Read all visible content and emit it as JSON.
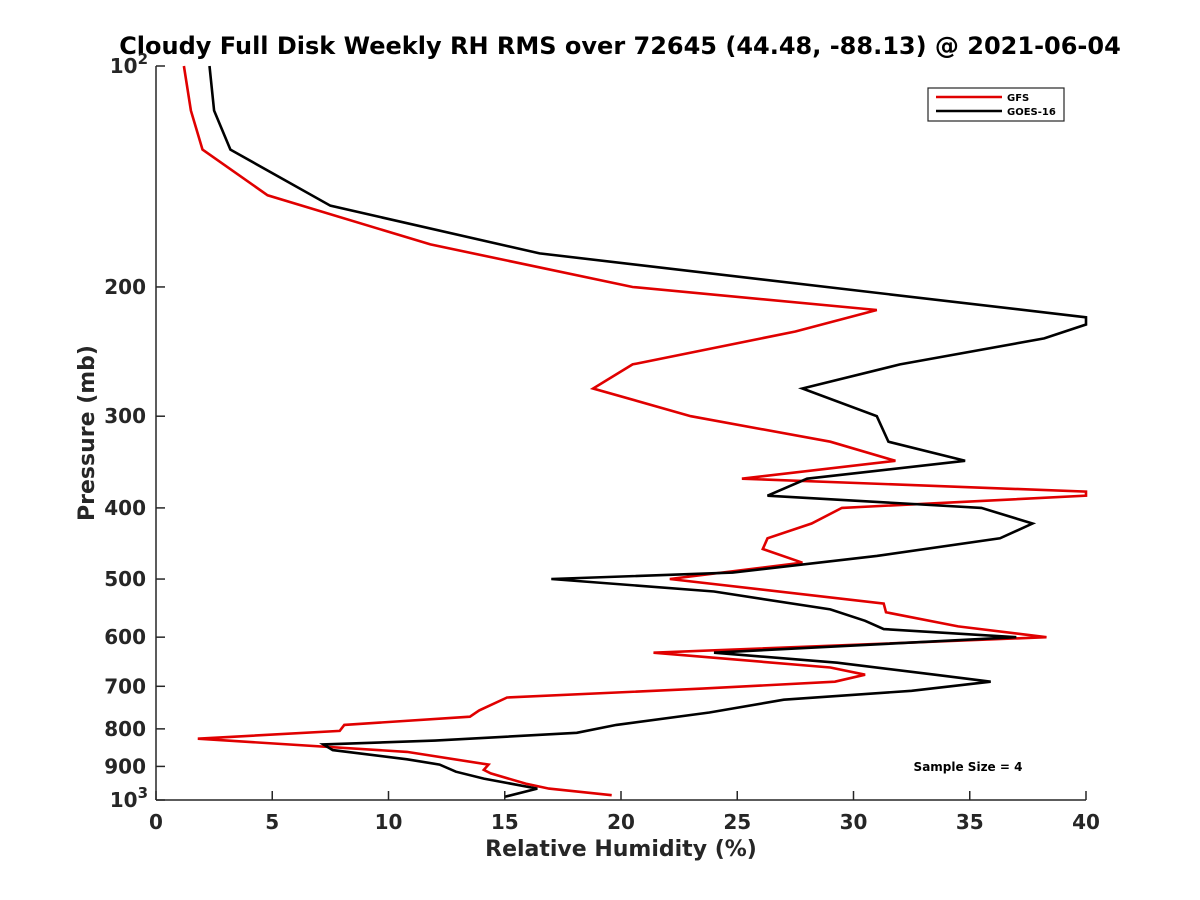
{
  "chart_data": {
    "type": "line",
    "title": "Cloudy Full Disk Weekly RH RMS over 72645 (44.48, -88.13) @ 2021-06-04",
    "xlabel": "Relative Humidity (%)",
    "ylabel": "Pressure (mb)",
    "xlim": [
      0,
      40
    ],
    "ylim": [
      100,
      1000
    ],
    "y_scale": "log",
    "y_reversed": true,
    "grid": false,
    "legend_position": "top-right",
    "annotation": "Sample Size = 4",
    "x_ticks": [
      "0",
      "5",
      "10",
      "15",
      "20",
      "25",
      "30",
      "35",
      "40"
    ],
    "y_ticks": [
      {
        "value": 100,
        "base": "10",
        "exp": "2"
      },
      {
        "value": 200,
        "label": "200"
      },
      {
        "value": 300,
        "label": "300"
      },
      {
        "value": 400,
        "label": "400"
      },
      {
        "value": 500,
        "label": "500"
      },
      {
        "value": 600,
        "label": "600"
      },
      {
        "value": 700,
        "label": "700"
      },
      {
        "value": 800,
        "label": "800"
      },
      {
        "value": 900,
        "label": "900"
      },
      {
        "value": 1000,
        "base": "10",
        "exp": "3"
      }
    ],
    "series": [
      {
        "name": "GFS",
        "color": "#e00000",
        "points": [
          [
            1.2,
            100
          ],
          [
            1.5,
            115
          ],
          [
            2.0,
            130
          ],
          [
            4.8,
            150
          ],
          [
            11.8,
            175
          ],
          [
            20.5,
            200
          ],
          [
            31.0,
            215
          ],
          [
            27.5,
            230
          ],
          [
            20.5,
            255
          ],
          [
            18.8,
            275
          ],
          [
            23.0,
            300
          ],
          [
            29.0,
            325
          ],
          [
            31.8,
            345
          ],
          [
            25.2,
            365
          ],
          [
            40.0,
            380
          ],
          [
            40.0,
            385
          ],
          [
            29.5,
            400
          ],
          [
            28.2,
            420
          ],
          [
            26.3,
            440
          ],
          [
            26.1,
            455
          ],
          [
            27.8,
            475
          ],
          [
            22.1,
            500
          ],
          [
            31.3,
            540
          ],
          [
            31.4,
            555
          ],
          [
            34.5,
            580
          ],
          [
            38.3,
            600
          ],
          [
            21.4,
            630
          ],
          [
            29.0,
            660
          ],
          [
            30.5,
            675
          ],
          [
            29.2,
            690
          ],
          [
            23.5,
            705
          ],
          [
            15.1,
            725
          ],
          [
            13.9,
            755
          ],
          [
            13.5,
            770
          ],
          [
            8.1,
            790
          ],
          [
            7.9,
            805
          ],
          [
            1.8,
            825
          ],
          [
            10.8,
            860
          ],
          [
            14.3,
            895
          ],
          [
            14.1,
            910
          ],
          [
            14.4,
            920
          ],
          [
            15.9,
            950
          ],
          [
            16.9,
            965
          ],
          [
            19.6,
            985
          ]
        ]
      },
      {
        "name": "GOES-16",
        "color": "#000000",
        "points": [
          [
            2.3,
            100
          ],
          [
            2.5,
            115
          ],
          [
            3.2,
            130
          ],
          [
            7.5,
            155
          ],
          [
            16.5,
            180
          ],
          [
            40.0,
            220
          ],
          [
            40.0,
            225
          ],
          [
            38.2,
            235
          ],
          [
            32.0,
            255
          ],
          [
            27.8,
            275
          ],
          [
            31.0,
            300
          ],
          [
            31.5,
            325
          ],
          [
            34.8,
            345
          ],
          [
            28.0,
            365
          ],
          [
            26.3,
            385
          ],
          [
            35.5,
            400
          ],
          [
            37.7,
            420
          ],
          [
            36.3,
            440
          ],
          [
            31.0,
            465
          ],
          [
            24.8,
            490
          ],
          [
            17.0,
            500
          ],
          [
            24.0,
            520
          ],
          [
            29.0,
            550
          ],
          [
            30.5,
            570
          ],
          [
            31.3,
            585
          ],
          [
            37.0,
            600
          ],
          [
            24.0,
            630
          ],
          [
            29.3,
            650
          ],
          [
            33.5,
            675
          ],
          [
            35.9,
            690
          ],
          [
            32.5,
            710
          ],
          [
            27.0,
            730
          ],
          [
            23.8,
            760
          ],
          [
            19.8,
            790
          ],
          [
            18.1,
            810
          ],
          [
            12.0,
            830
          ],
          [
            7.2,
            840
          ],
          [
            7.6,
            855
          ],
          [
            10.8,
            880
          ],
          [
            12.2,
            895
          ],
          [
            12.9,
            915
          ],
          [
            14.1,
            935
          ],
          [
            16.4,
            965
          ],
          [
            15.0,
            990
          ]
        ]
      }
    ]
  }
}
